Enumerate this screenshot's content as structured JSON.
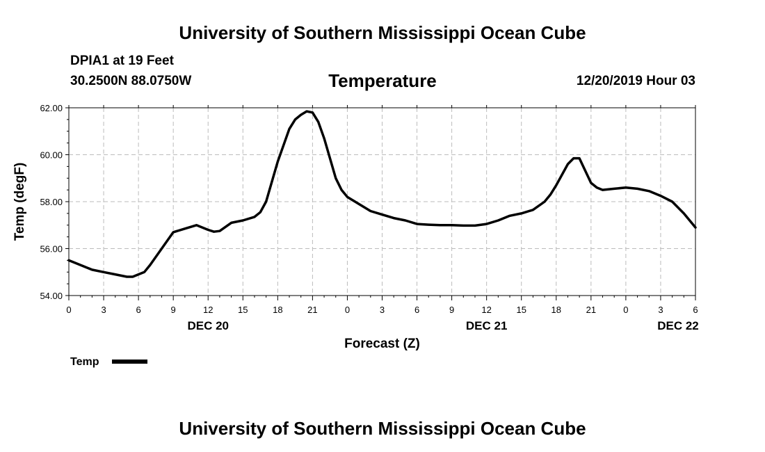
{
  "page": {
    "title_top": "University of Southern Mississippi Ocean Cube",
    "title_bottom": "University of Southern Mississippi Ocean Cube",
    "station": "DPIA1 at 19 Feet",
    "coords": "30.2500N 88.0750W",
    "timestamp": "12/20/2019 Hour 03"
  },
  "colors": {
    "line": "#000000",
    "grid": "#bbbbbb"
  },
  "chart_data": {
    "type": "line",
    "title": "Temperature",
    "xlabel": "Forecast (Z)",
    "ylabel": "Temp (degF)",
    "ylim": [
      54,
      62
    ],
    "yticks": [
      "54.00",
      "56.00",
      "58.00",
      "60.00",
      "62.00"
    ],
    "xlim": [
      0,
      54
    ],
    "xticks": [
      {
        "x": 0,
        "label": "0"
      },
      {
        "x": 3,
        "label": "3"
      },
      {
        "x": 6,
        "label": "6"
      },
      {
        "x": 9,
        "label": "9"
      },
      {
        "x": 12,
        "label": "12"
      },
      {
        "x": 15,
        "label": "15"
      },
      {
        "x": 18,
        "label": "18"
      },
      {
        "x": 21,
        "label": "21"
      },
      {
        "x": 24,
        "label": "0"
      },
      {
        "x": 27,
        "label": "3"
      },
      {
        "x": 30,
        "label": "6"
      },
      {
        "x": 33,
        "label": "9"
      },
      {
        "x": 36,
        "label": "12"
      },
      {
        "x": 39,
        "label": "15"
      },
      {
        "x": 42,
        "label": "18"
      },
      {
        "x": 45,
        "label": "21"
      },
      {
        "x": 48,
        "label": "0"
      },
      {
        "x": 51,
        "label": "3"
      },
      {
        "x": 54,
        "label": "6"
      }
    ],
    "date_labels": [
      {
        "x": 12,
        "label": "DEC 20"
      },
      {
        "x": 36,
        "label": "DEC 21"
      },
      {
        "x": 52.5,
        "label": "DEC 22"
      }
    ],
    "grid": true,
    "legend": {
      "position": "bottom-left",
      "entries": [
        "Temp"
      ]
    },
    "series": [
      {
        "name": "Temp",
        "x": [
          0,
          1,
          2,
          3,
          4,
          5,
          5.5,
          6,
          6.5,
          7,
          8,
          9,
          10,
          11,
          12,
          12.5,
          13,
          14,
          15,
          16,
          16.5,
          17,
          18,
          19,
          19.5,
          20,
          20.5,
          21,
          21.5,
          22,
          23,
          23.5,
          24,
          25,
          26,
          27,
          28,
          29,
          30,
          31,
          32,
          33,
          34,
          35,
          36,
          37,
          38,
          39,
          40,
          41,
          41.5,
          42,
          43,
          43.5,
          44,
          45,
          45.5,
          46,
          47,
          48,
          49,
          50,
          51,
          52,
          53,
          54
        ],
        "y": [
          55.5,
          55.3,
          55.1,
          55.0,
          54.9,
          54.8,
          54.8,
          54.9,
          55.0,
          55.3,
          56.0,
          56.7,
          56.85,
          57.0,
          56.8,
          56.72,
          56.75,
          57.1,
          57.2,
          57.35,
          57.55,
          58.0,
          59.7,
          61.1,
          61.5,
          61.7,
          61.85,
          61.8,
          61.4,
          60.7,
          59.0,
          58.5,
          58.2,
          57.9,
          57.6,
          57.45,
          57.3,
          57.2,
          57.05,
          57.02,
          57.0,
          57.0,
          56.98,
          56.98,
          57.05,
          57.2,
          57.4,
          57.5,
          57.65,
          58.0,
          58.3,
          58.7,
          59.6,
          59.85,
          59.85,
          58.8,
          58.6,
          58.5,
          58.55,
          58.6,
          58.55,
          58.45,
          58.25,
          58.0,
          57.5,
          56.9
        ]
      }
    ]
  }
}
